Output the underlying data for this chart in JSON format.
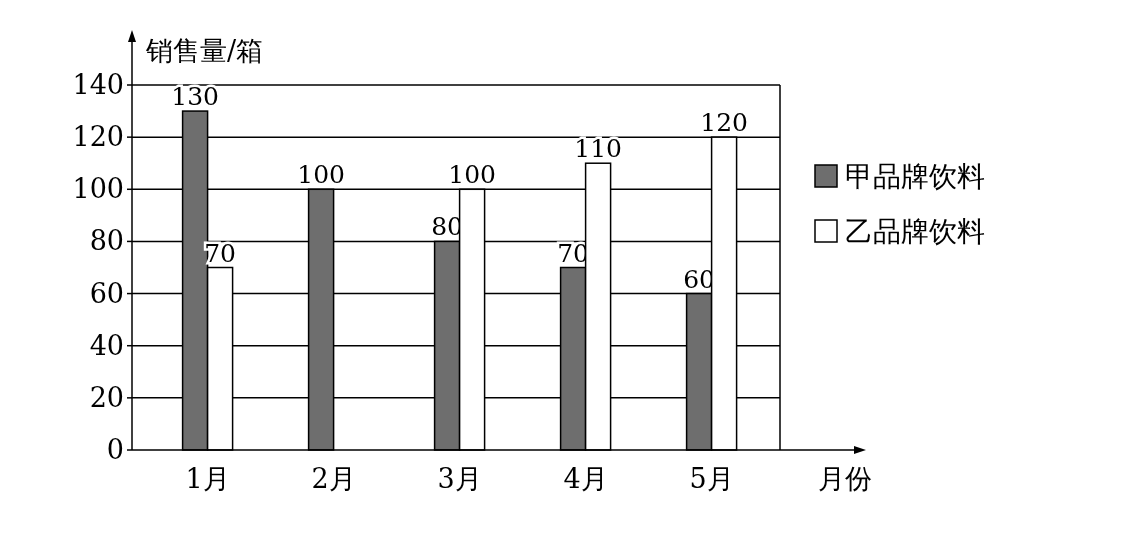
{
  "chart_data": {
    "type": "bar",
    "categories": [
      "1月",
      "2月",
      "3月",
      "4月",
      "5月"
    ],
    "series": [
      {
        "name": "甲品牌饮料",
        "color": "#6e6e6e",
        "values": [
          130,
          100,
          80,
          70,
          60
        ]
      },
      {
        "name": "乙品牌饮料",
        "color": "#ffffff",
        "values": [
          70,
          null,
          100,
          110,
          120
        ]
      }
    ],
    "xlabel": "月份",
    "ylabel": "销售量/箱",
    "ylim": [
      0,
      140
    ],
    "yticks": [
      0,
      20,
      40,
      60,
      80,
      100,
      120,
      140
    ],
    "grid": "y",
    "legend": "right",
    "data_labels": true
  }
}
